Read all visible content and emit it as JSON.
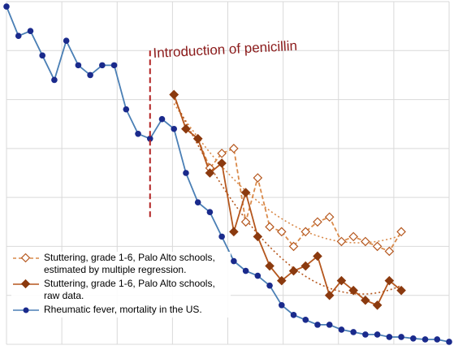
{
  "chart_data": {
    "type": "line",
    "title": "",
    "xlabel": "",
    "ylabel": "",
    "grid": true,
    "legend_position": "bottom-left",
    "annotation": {
      "text": "Introduction of penicillin",
      "x": 12,
      "color": "#8b1a1a"
    },
    "xlim": [
      0,
      37
    ],
    "ylim": [
      0,
      7
    ],
    "series": [
      {
        "name": "Stuttering, grade 1-6, Palo Alto schools, estimated by multiple regression.",
        "color": "#d98a4a",
        "style": "dashed-open-diamond",
        "x": [
          14,
          15,
          16,
          17,
          18,
          19,
          20,
          21,
          22,
          23,
          24,
          25,
          26,
          27,
          28,
          29,
          30,
          31,
          32,
          33
        ],
        "y": [
          5.1,
          4.4,
          4.2,
          3.6,
          3.9,
          4.0,
          2.5,
          3.4,
          2.4,
          2.3,
          2.0,
          2.3,
          2.5,
          2.6,
          2.1,
          2.2,
          2.1,
          2.0,
          1.9,
          2.3
        ]
      },
      {
        "name": "Stuttering, grade 1-6, Palo Alto schools, raw data.",
        "color": "#b5571e",
        "style": "solid-filled-diamond",
        "x": [
          14,
          15,
          16,
          17,
          18,
          19,
          20,
          21,
          22,
          23,
          24,
          25,
          26,
          27,
          28,
          29,
          30,
          31,
          32,
          33
        ],
        "y": [
          5.1,
          4.4,
          4.2,
          3.5,
          3.7,
          2.3,
          3.1,
          2.2,
          1.6,
          1.3,
          1.5,
          1.6,
          1.8,
          1.0,
          1.3,
          1.1,
          0.9,
          0.8,
          1.3,
          1.1
        ]
      },
      {
        "name": "Rheumatic fever, mortality in the US.",
        "color": "#4a7fb5",
        "marker_color": "#1a2a8c",
        "style": "solid-filled-circle",
        "x": [
          0,
          1,
          2,
          3,
          4,
          5,
          6,
          7,
          8,
          9,
          10,
          11,
          12,
          13,
          14,
          15,
          16,
          17,
          18,
          19,
          20,
          21,
          22,
          23,
          24,
          25,
          26,
          27,
          28,
          29,
          30,
          31,
          32,
          33,
          34,
          35,
          36,
          37
        ],
        "y": [
          6.9,
          6.3,
          6.4,
          5.9,
          5.4,
          6.2,
          5.7,
          5.5,
          5.7,
          5.7,
          4.8,
          4.3,
          4.2,
          4.6,
          4.4,
          3.5,
          2.9,
          2.7,
          2.2,
          1.7,
          1.5,
          1.4,
          1.2,
          0.8,
          0.6,
          0.5,
          0.4,
          0.4,
          0.3,
          0.25,
          0.2,
          0.2,
          0.15,
          0.15,
          0.12,
          0.1,
          0.1,
          0.05
        ]
      }
    ]
  },
  "legend": {
    "items": [
      {
        "label": "Stuttering, grade 1-6, Palo Alto schools, estimated by multiple regression."
      },
      {
        "label": "Stuttering, grade 1-6, Palo Alto schools, raw data."
      },
      {
        "label": "Rheumatic fever, mortality in the US."
      }
    ]
  }
}
